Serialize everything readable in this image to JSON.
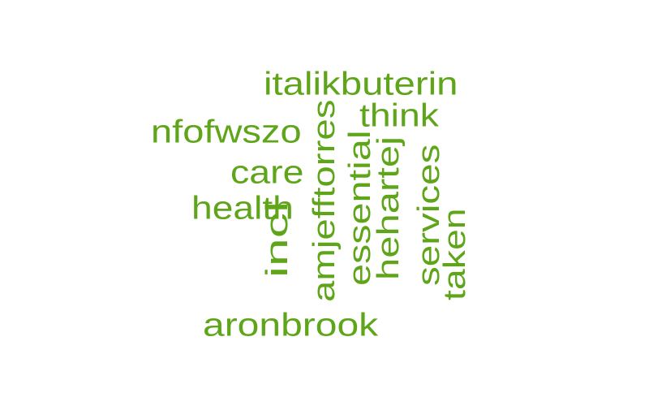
{
  "word_cloud": {
    "color": "#5fa519",
    "words": [
      {
        "text": "italikbuterin",
        "orientation": "horizontal"
      },
      {
        "text": "think",
        "orientation": "horizontal"
      },
      {
        "text": "nfofwszo",
        "orientation": "horizontal"
      },
      {
        "text": "care",
        "orientation": "horizontal"
      },
      {
        "text": "health",
        "orientation": "horizontal"
      },
      {
        "text": "aronbrook",
        "orientation": "horizontal"
      },
      {
        "text": "amjefftorres",
        "orientation": "vertical"
      },
      {
        "text": "essential",
        "orientation": "vertical"
      },
      {
        "text": "hehartej",
        "orientation": "vertical"
      },
      {
        "text": "services",
        "orientation": "vertical"
      },
      {
        "text": "taken",
        "orientation": "vertical"
      },
      {
        "text": "incl",
        "orientation": "vertical"
      }
    ]
  }
}
